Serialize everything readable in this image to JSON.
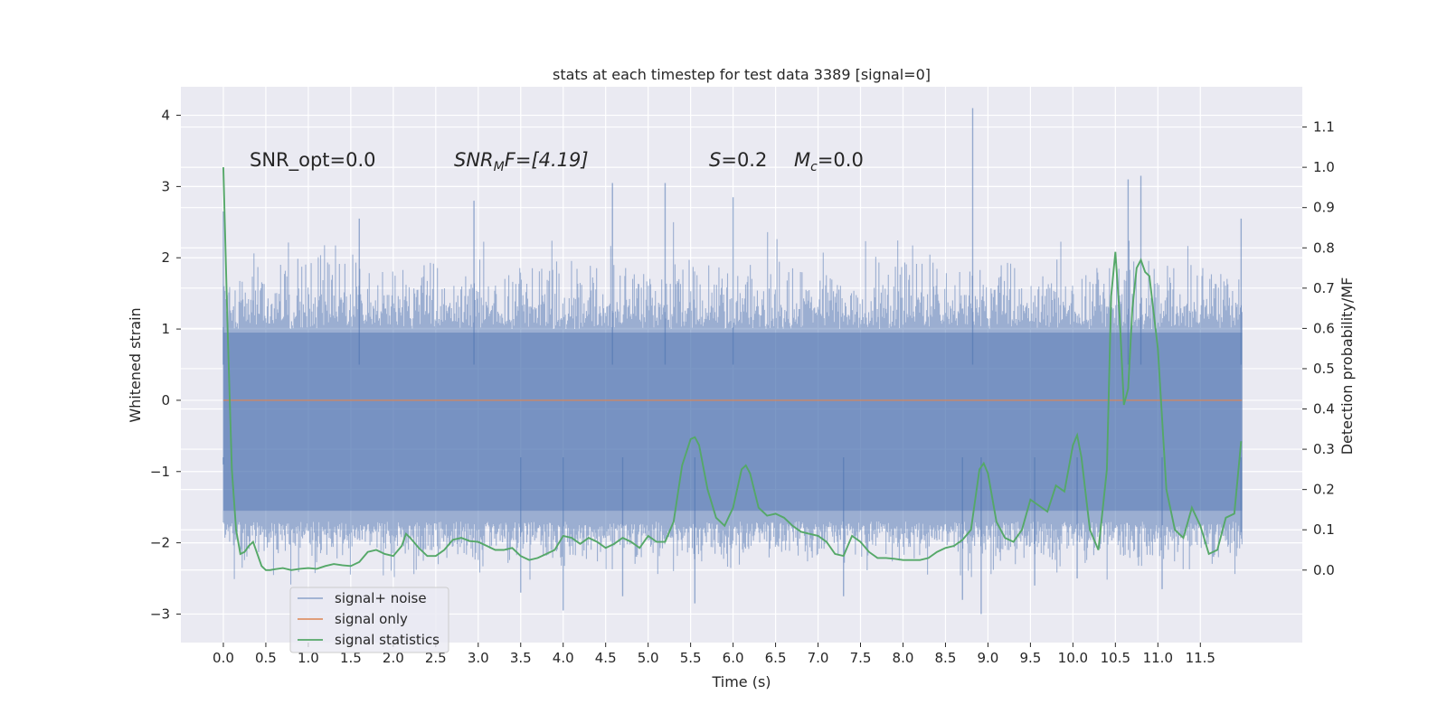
{
  "chart_data": {
    "type": "line",
    "title": "stats at each timestep for test data 3389 [signal=0]",
    "xlabel": "Time (s)",
    "ylabel": "Whitened strain",
    "y2label": "Detection probability/MF",
    "xlim": [
      -0.5,
      12.7
    ],
    "ylim": [
      -3.4,
      4.4
    ],
    "y2lim": [
      -0.18,
      1.2
    ],
    "x_ticks": [
      0.0,
      0.5,
      1.0,
      1.5,
      2.0,
      2.5,
      3.0,
      3.5,
      4.0,
      4.5,
      5.0,
      5.5,
      6.0,
      6.5,
      7.0,
      7.5,
      8.0,
      8.5,
      9.0,
      9.5,
      10.0,
      10.5,
      11.0,
      11.5
    ],
    "x_tick_labels": [
      "0.0",
      "0.5",
      "1.0",
      "1.5",
      "2.0",
      "2.5",
      "3.0",
      "3.5",
      "4.0",
      "4.5",
      "5.0",
      "5.5",
      "6.0",
      "6.5",
      "7.0",
      "7.5",
      "8.0",
      "8.5",
      "9.0",
      "9.5",
      "10.0",
      "10.5",
      "11.0",
      "11.5"
    ],
    "y_ticks": [
      -3,
      -2,
      -1,
      0,
      1,
      2,
      3,
      4
    ],
    "y_tick_labels": [
      "−3",
      "−2",
      "−1",
      "0",
      "1",
      "2",
      "3",
      "4"
    ],
    "y2_ticks": [
      0.0,
      0.1,
      0.2,
      0.3,
      0.4,
      0.5,
      0.6,
      0.7,
      0.8,
      0.9,
      1.0,
      1.1
    ],
    "y2_tick_labels": [
      "0.0",
      "0.1",
      "0.2",
      "0.3",
      "0.4",
      "0.5",
      "0.6",
      "0.7",
      "0.8",
      "0.9",
      "1.0",
      "1.1"
    ],
    "grid": true,
    "legend_position": "lower-left",
    "annotations": {
      "snr_opt": "SNR_opt=0.0",
      "snr_mf_prefix": "SNR",
      "snr_mf_sub": "M",
      "snr_mf_rest": "F=[4.19]",
      "s_label": "S",
      "s_value": "=0.2",
      "mc_label": "M",
      "mc_sub": "c",
      "mc_value": "=0.0"
    },
    "series": [
      {
        "name": "signal+ noise",
        "color": "#4c72b0",
        "axis": "left",
        "t_start": 0.0,
        "t_end": 11.99,
        "typical_range": [
          -1.7,
          1.0
        ],
        "extremes": [
          {
            "x": 0.0,
            "y": 2.65
          },
          {
            "x": 0.0,
            "y": -0.9
          },
          {
            "x": 1.6,
            "y": 2.55
          },
          {
            "x": 2.95,
            "y": 2.8
          },
          {
            "x": 3.5,
            "y": -2.7
          },
          {
            "x": 4.0,
            "y": -2.95
          },
          {
            "x": 4.58,
            "y": 3.05
          },
          {
            "x": 4.7,
            "y": -2.75
          },
          {
            "x": 5.2,
            "y": 3.05
          },
          {
            "x": 5.55,
            "y": -2.85
          },
          {
            "x": 6.0,
            "y": 2.85
          },
          {
            "x": 7.3,
            "y": -2.75
          },
          {
            "x": 8.82,
            "y": 4.1
          },
          {
            "x": 8.7,
            "y": -2.8
          },
          {
            "x": 8.92,
            "y": -3.0
          },
          {
            "x": 9.55,
            "y": -2.6
          },
          {
            "x": 10.05,
            "y": -2.5
          },
          {
            "x": 10.65,
            "y": 3.1
          },
          {
            "x": 10.8,
            "y": 3.15
          },
          {
            "x": 11.05,
            "y": -2.65
          },
          {
            "x": 11.98,
            "y": 2.55
          },
          {
            "x": 11.98,
            "y": -1.85
          }
        ]
      },
      {
        "name": "signal only",
        "color": "#dd8452",
        "axis": "left",
        "x": [
          0.0,
          11.99
        ],
        "y": [
          0.0,
          0.0
        ]
      },
      {
        "name": "signal statistics",
        "color": "#55a868",
        "axis": "right",
        "x": [
          0.0,
          0.05,
          0.1,
          0.15,
          0.2,
          0.25,
          0.3,
          0.35,
          0.4,
          0.45,
          0.5,
          0.55,
          0.6,
          0.7,
          0.8,
          0.9,
          1.0,
          1.1,
          1.2,
          1.3,
          1.4,
          1.5,
          1.6,
          1.7,
          1.8,
          1.9,
          2.0,
          2.1,
          2.15,
          2.2,
          2.3,
          2.4,
          2.5,
          2.6,
          2.7,
          2.8,
          2.9,
          3.0,
          3.1,
          3.2,
          3.3,
          3.4,
          3.5,
          3.6,
          3.7,
          3.8,
          3.9,
          4.0,
          4.1,
          4.2,
          4.3,
          4.4,
          4.5,
          4.6,
          4.7,
          4.8,
          4.9,
          5.0,
          5.1,
          5.2,
          5.3,
          5.4,
          5.5,
          5.55,
          5.6,
          5.7,
          5.8,
          5.9,
          6.0,
          6.1,
          6.15,
          6.2,
          6.3,
          6.4,
          6.5,
          6.6,
          6.7,
          6.8,
          6.9,
          7.0,
          7.1,
          7.2,
          7.3,
          7.4,
          7.5,
          7.6,
          7.7,
          7.8,
          7.9,
          8.0,
          8.1,
          8.2,
          8.3,
          8.4,
          8.5,
          8.6,
          8.7,
          8.8,
          8.9,
          8.95,
          9.0,
          9.1,
          9.2,
          9.3,
          9.4,
          9.5,
          9.6,
          9.7,
          9.8,
          9.9,
          10.0,
          10.05,
          10.1,
          10.2,
          10.3,
          10.4,
          10.45,
          10.5,
          10.55,
          10.6,
          10.65,
          10.7,
          10.75,
          10.8,
          10.85,
          10.9,
          11.0,
          11.1,
          11.2,
          11.3,
          11.4,
          11.5,
          11.6,
          11.7,
          11.8,
          11.9,
          11.98
        ],
        "y": [
          1.0,
          0.6,
          0.25,
          0.1,
          0.04,
          0.045,
          0.06,
          0.07,
          0.04,
          0.01,
          0.0,
          0.0,
          0.002,
          0.005,
          0.0,
          0.003,
          0.005,
          0.003,
          0.01,
          0.015,
          0.012,
          0.01,
          0.02,
          0.045,
          0.05,
          0.04,
          0.035,
          0.06,
          0.09,
          0.08,
          0.055,
          0.035,
          0.035,
          0.05,
          0.075,
          0.08,
          0.072,
          0.07,
          0.06,
          0.05,
          0.05,
          0.055,
          0.035,
          0.025,
          0.03,
          0.04,
          0.05,
          0.085,
          0.08,
          0.065,
          0.08,
          0.07,
          0.055,
          0.065,
          0.08,
          0.07,
          0.055,
          0.085,
          0.07,
          0.07,
          0.12,
          0.26,
          0.325,
          0.33,
          0.31,
          0.2,
          0.13,
          0.11,
          0.155,
          0.25,
          0.26,
          0.24,
          0.155,
          0.135,
          0.14,
          0.13,
          0.11,
          0.095,
          0.09,
          0.085,
          0.07,
          0.04,
          0.035,
          0.085,
          0.07,
          0.045,
          0.03,
          0.03,
          0.028,
          0.025,
          0.025,
          0.025,
          0.03,
          0.045,
          0.055,
          0.06,
          0.075,
          0.1,
          0.25,
          0.265,
          0.24,
          0.12,
          0.08,
          0.07,
          0.1,
          0.175,
          0.16,
          0.145,
          0.21,
          0.195,
          0.31,
          0.335,
          0.28,
          0.1,
          0.05,
          0.25,
          0.68,
          0.79,
          0.63,
          0.41,
          0.45,
          0.65,
          0.75,
          0.77,
          0.74,
          0.73,
          0.55,
          0.2,
          0.1,
          0.08,
          0.155,
          0.11,
          0.04,
          0.05,
          0.13,
          0.14,
          0.32
        ]
      }
    ]
  }
}
